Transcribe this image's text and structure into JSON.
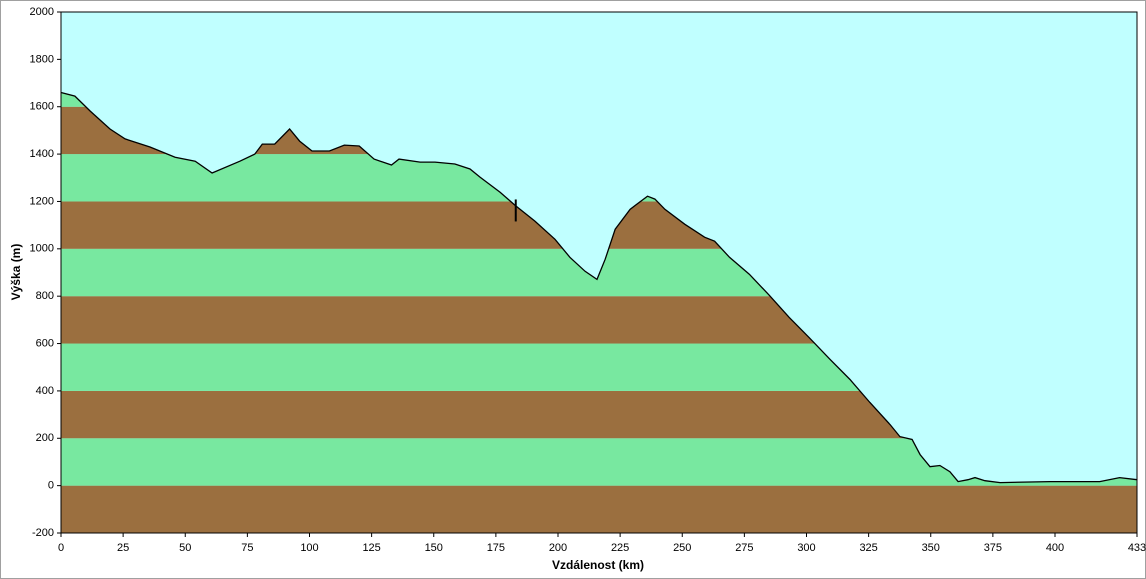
{
  "chart_data": {
    "type": "area",
    "x_label": "Vzdálenost  (km)",
    "y_label": "Výška (m)",
    "x": [
      0,
      5.6,
      11.7,
      19.7,
      25.8,
      35.8,
      45.9,
      54,
      60.8,
      72,
      78,
      81,
      86,
      92,
      96,
      101,
      108,
      114,
      120,
      126,
      133,
      136,
      144.5,
      150.5,
      158.5,
      164.6,
      168.6,
      176.7,
      182.7,
      190.7,
      198.8,
      204.8,
      210.9,
      215.7,
      219,
      223,
      229,
      236,
      239,
      243,
      251,
      259,
      263,
      269,
      277,
      285,
      293,
      301,
      309.5,
      317.5,
      325.5,
      333.6,
      337.6,
      342.5,
      345.7,
      349.7,
      353.7,
      357.7,
      361,
      365,
      367.8,
      371.8,
      377.9,
      398,
      418,
      426,
      433
    ],
    "values": [
      1660,
      1645,
      1582,
      1506,
      1464,
      1430,
      1387,
      1370,
      1320,
      1370,
      1400,
      1442,
      1442,
      1506,
      1455,
      1413,
      1413,
      1438,
      1434,
      1379,
      1354,
      1379,
      1366,
      1366,
      1358,
      1337,
      1303,
      1239,
      1184,
      1117,
      1040,
      964,
      905,
      871,
      956,
      1083,
      1167,
      1222,
      1210,
      1167,
      1104,
      1049,
      1032,
      964,
      893,
      804,
      711,
      626,
      533,
      448,
      351,
      258,
      207,
      195,
      131,
      80,
      85,
      59,
      17,
      25,
      34,
      21,
      13,
      17,
      17,
      34,
      25
    ],
    "line_color": "#000000",
    "sky_color": "#c0ffff",
    "band_colors": [
      "#9b6f3f",
      "#78e8a0"
    ],
    "marker_x": 183,
    "xlim": [
      0,
      433
    ],
    "xticks": [
      0,
      25,
      50,
      75,
      100,
      125,
      150,
      175,
      200,
      225,
      250,
      275,
      300,
      325,
      350,
      375,
      400,
      433
    ],
    "ylim": [
      -200,
      2000
    ],
    "yticks": [
      -200,
      0,
      200,
      400,
      600,
      800,
      1000,
      1200,
      1400,
      1600,
      1800,
      2000
    ],
    "grid": false
  }
}
